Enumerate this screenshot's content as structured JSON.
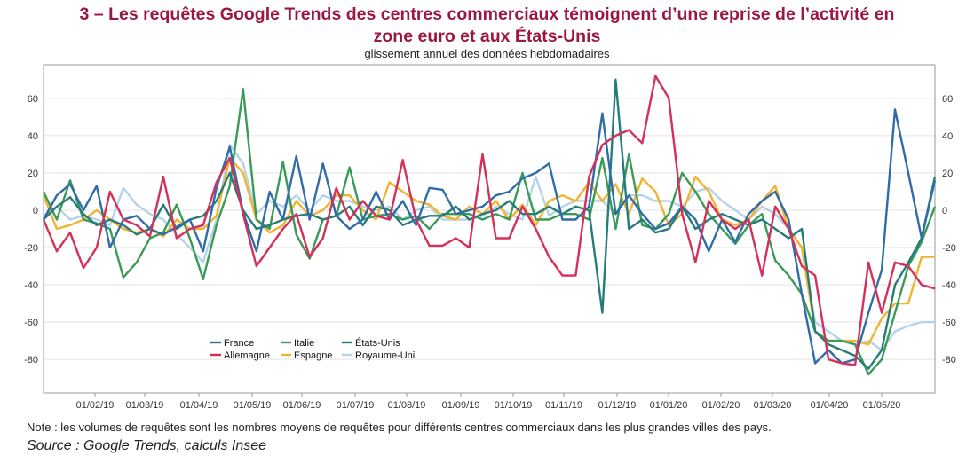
{
  "title_line1": "3 – Les requêtes Google Trends des centres commerciaux témoignent d’une reprise de l’activité en",
  "title_line2": "zone euro et aux États-Unis",
  "subtitle": "glissement annuel des données hebdomadaires",
  "note": "Note : les volumes de requêtes sont les nombres moyens de requêtes pour différents centres commerciaux dans les plus grandes villes des pays.",
  "source": "Source : Google Trends, calculs Insee",
  "chart_data": {
    "type": "line",
    "x_tick_labels": [
      "01/02/19",
      "01/03/19",
      "01/04/19",
      "01/05/19",
      "01/06/19",
      "01/07/19",
      "01/08/19",
      "01/09/19",
      "01/10/19",
      "01/11/19",
      "01/12/19",
      "01/01/20",
      "01/02/20",
      "01/03/20",
      "01/04/20",
      "01/05/20"
    ],
    "ylim": [
      -98,
      78
    ],
    "y_ticks": [
      60,
      40,
      20,
      0,
      -20,
      -40,
      -60,
      -80
    ],
    "grid": true,
    "legend_position": "bottom-left",
    "series": [
      {
        "name": "France",
        "color": "#2f6da8",
        "values": [
          -5,
          8,
          14,
          0,
          13,
          -20,
          -5,
          -3,
          -10,
          -13,
          -9,
          -5,
          -22,
          12,
          34,
          -1,
          -22,
          10,
          -5,
          29,
          -5,
          25,
          -3,
          -10,
          -5,
          10,
          -5,
          5,
          -8,
          12,
          11,
          -2,
          0,
          2,
          8,
          10,
          17,
          20,
          25,
          -5,
          -5,
          2,
          52,
          -2,
          8,
          -2,
          -10,
          -7,
          2,
          -5,
          -22,
          -5,
          -17,
          -2,
          5,
          10,
          -5,
          -45,
          -82,
          -75,
          -82,
          -80,
          -55,
          -32,
          54,
          20,
          -15,
          16
        ]
      },
      {
        "name": "Italie",
        "color": "#3a9a58",
        "values": [
          10,
          -5,
          16,
          -5,
          -7,
          -10,
          -36,
          -28,
          -15,
          -12,
          3,
          -15,
          -37,
          -8,
          13,
          65,
          -5,
          -10,
          26,
          -13,
          -26,
          -5,
          -3,
          23,
          -5,
          -3,
          -2,
          -5,
          -3,
          -10,
          -2,
          -2,
          -2,
          -5,
          -2,
          -5,
          20,
          -5,
          -5,
          -2,
          -2,
          -5,
          28,
          -10,
          30,
          -8,
          -10,
          -2,
          20,
          10,
          -2,
          -10,
          -18,
          -8,
          -2,
          -27,
          -35,
          -45,
          -65,
          -70,
          -70,
          -72,
          -88,
          -80,
          -55,
          -30,
          -17,
          2
        ]
      },
      {
        "name": "États-Unis",
        "color": "#267c78",
        "values": [
          -5,
          2,
          7,
          -2,
          -8,
          -5,
          -8,
          -13,
          -10,
          3,
          -10,
          -5,
          -3,
          5,
          20,
          0,
          -10,
          -8,
          -5,
          -3,
          -2,
          -5,
          -3,
          2,
          -8,
          2,
          0,
          -8,
          -5,
          -3,
          -3,
          2,
          -5,
          -2,
          0,
          5,
          -2,
          -2,
          2,
          -2,
          2,
          0,
          -55,
          70,
          -10,
          -5,
          -12,
          -10,
          2,
          -10,
          -5,
          -2,
          -5,
          -8,
          -5,
          -10,
          -15,
          -10,
          -65,
          -72,
          -75,
          -78,
          -85,
          -75,
          -40,
          -28,
          -15,
          18
        ]
      },
      {
        "name": "Allemagne",
        "color": "#d4305a",
        "values": [
          -5,
          -22,
          -12,
          -31,
          -20,
          10,
          -5,
          -8,
          -14,
          18,
          -15,
          -10,
          -8,
          15,
          28,
          -2,
          -30,
          -20,
          -10,
          -2,
          -25,
          -15,
          12,
          -5,
          5,
          -3,
          -5,
          27,
          -5,
          -19,
          -19,
          -15,
          -20,
          30,
          -15,
          -15,
          2,
          -10,
          -25,
          -35,
          -35,
          18,
          35,
          40,
          43,
          36,
          72,
          60,
          -2,
          -28,
          5,
          -5,
          -10,
          -5,
          -35,
          2,
          -10,
          -30,
          -35,
          -80,
          -82,
          -83,
          -28,
          -55,
          -28,
          -30,
          -40,
          -42
        ]
      },
      {
        "name": "Espagne",
        "color": "#f2b330",
        "values": [
          8,
          -10,
          -8,
          -5,
          0,
          -5,
          -10,
          -12,
          -10,
          -14,
          -5,
          -10,
          -10,
          -3,
          28,
          20,
          -5,
          -12,
          -8,
          5,
          -3,
          0,
          8,
          8,
          0,
          -5,
          15,
          10,
          5,
          3,
          -3,
          -5,
          2,
          -2,
          5,
          -5,
          3,
          -8,
          5,
          8,
          5,
          15,
          5,
          14,
          -2,
          17,
          10,
          -8,
          -2,
          18,
          10,
          -5,
          -8,
          -5,
          5,
          13,
          -10,
          -20,
          -65,
          -70,
          -70,
          -70,
          -72,
          -58,
          -50,
          -50,
          -25,
          -25
        ]
      },
      {
        "name": "Royaume-Uni",
        "color": "#b5d3e8",
        "values": [
          -3,
          2,
          -5,
          -3,
          -5,
          -8,
          12,
          3,
          -2,
          -5,
          -13,
          -20,
          -28,
          -5,
          35,
          25,
          -2,
          5,
          2,
          8,
          0,
          8,
          5,
          5,
          2,
          0,
          2,
          -5,
          0,
          2,
          -5,
          -5,
          -5,
          -3,
          2,
          -2,
          -5,
          18,
          -3,
          2,
          5,
          5,
          5,
          -2,
          8,
          8,
          5,
          5,
          2,
          10,
          12,
          5,
          0,
          -5,
          2,
          -2,
          -10,
          -20,
          -60,
          -65,
          -70,
          -72,
          -70,
          -75,
          -65,
          -62,
          -60,
          -60
        ]
      }
    ]
  }
}
